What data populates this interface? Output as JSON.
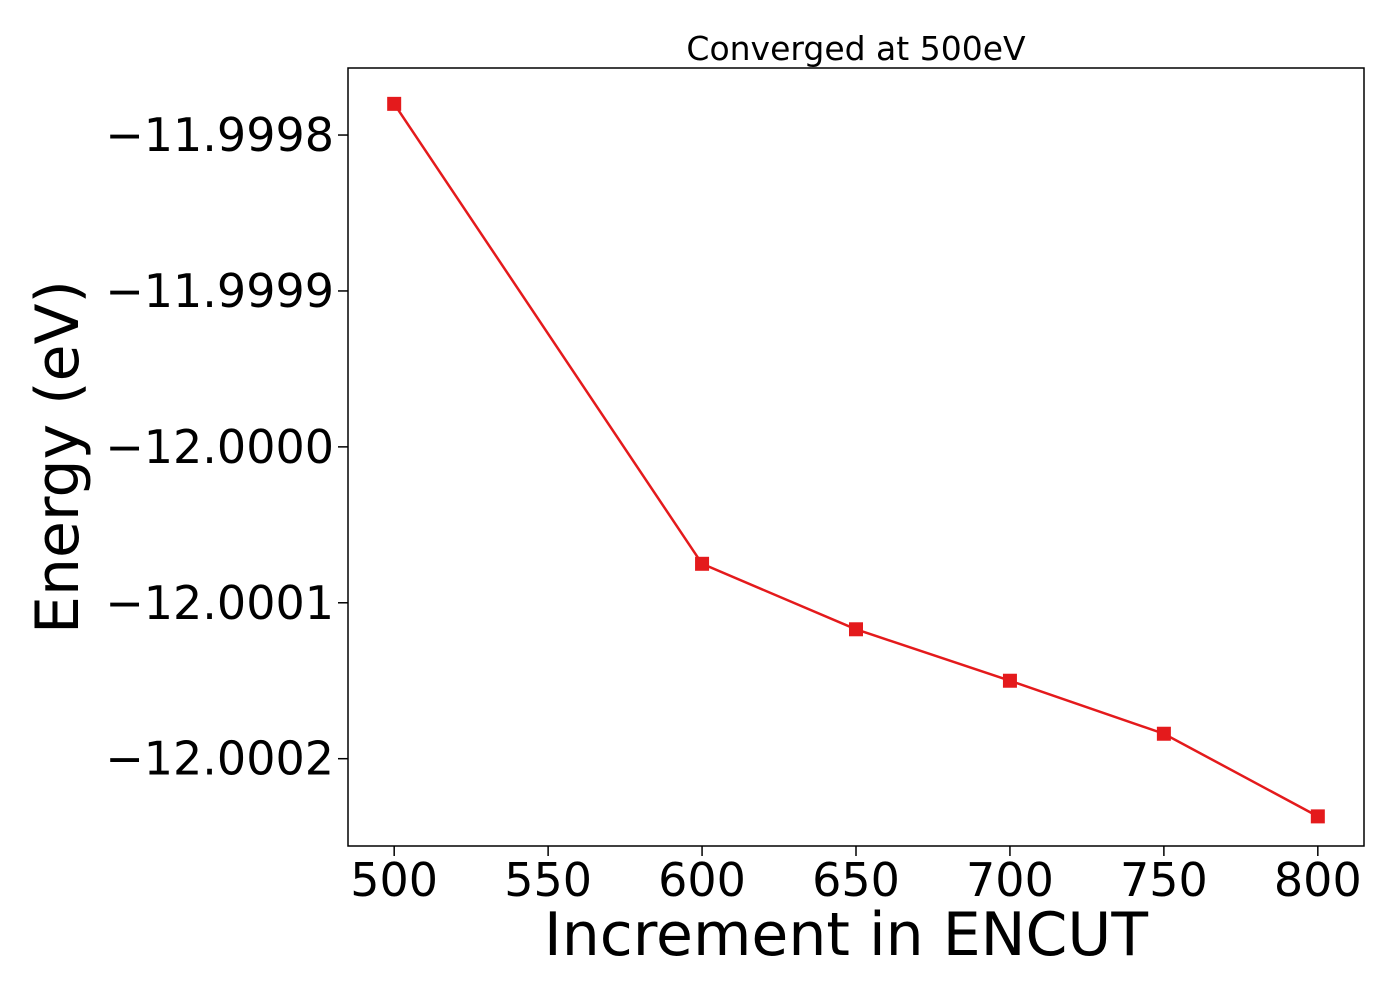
{
  "chart_data": {
    "type": "line",
    "title": "Converged at 500eV",
    "xlabel": "Increment in ENCUT",
    "ylabel": "Energy (eV)",
    "x": [
      500,
      600,
      650,
      700,
      750,
      800
    ],
    "series": [
      {
        "values": [
          -11.99978,
          -12.000075,
          -12.000117,
          -12.00015,
          -12.000184,
          -12.000237
        ],
        "color": "#e41a1c",
        "marker": "square"
      }
    ],
    "xticks": [
      500,
      550,
      600,
      650,
      700,
      750,
      800
    ],
    "xtick_labels": [
      "500",
      "550",
      "600",
      "650",
      "700",
      "750",
      "800"
    ],
    "yticks": [
      -11.9998,
      -11.9999,
      -12.0,
      -12.0001,
      -12.0002
    ],
    "ytick_labels": [
      "−11.9998",
      "−11.9999",
      "−12.0000",
      "−12.0001",
      "−12.0002"
    ],
    "xlim": [
      485,
      815
    ],
    "ylim": [
      -12.000256,
      -11.999757
    ],
    "grid": false,
    "legend": "none"
  }
}
